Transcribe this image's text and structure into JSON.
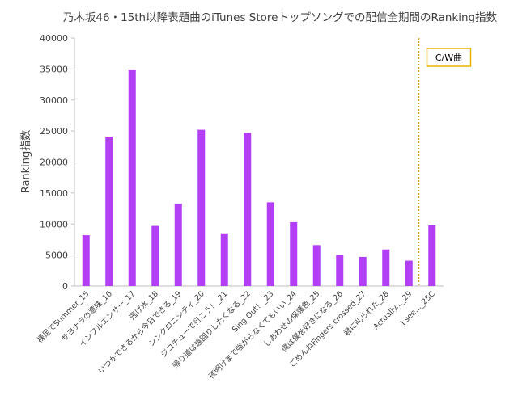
{
  "chart_data": {
    "type": "bar",
    "title": "乃木坂46・15th以降表題曲のiTunes Storeトップソングでの配信全期間のRanking指数",
    "xlabel": "",
    "ylabel": "Ranking指数",
    "ylim": [
      0,
      40000
    ],
    "yticks": [
      0,
      5000,
      10000,
      15000,
      20000,
      25000,
      30000,
      35000,
      40000
    ],
    "grid": false,
    "bar_color": "#b23ef5",
    "categories": [
      "裸足でSummer_15",
      "サヨナラの意味_16",
      "インフルエンサー_17",
      "逃げ水_18",
      "いつかできるから今日できる_19",
      "シンクロニシティ_20",
      "ジコチューで行こう！_21",
      "帰り道は遠回りしたくなる_22",
      "Sing Out！_23",
      "夜明けまで強がらなくてもいい_24",
      "しあわせの保護色_25",
      "僕は僕を好きになる_26",
      "ごめんねFingers crossed_27",
      "君に叱られた_28",
      "Actually..._29",
      "I see..._25C"
    ],
    "values": [
      8200,
      24100,
      34800,
      9700,
      13300,
      25200,
      8500,
      24700,
      13500,
      10300,
      6600,
      5000,
      4700,
      5900,
      4100,
      9800
    ],
    "annotation": {
      "text": "C/W曲",
      "divider_color": "#d4a017",
      "box_border_color": "#e8b400"
    }
  }
}
